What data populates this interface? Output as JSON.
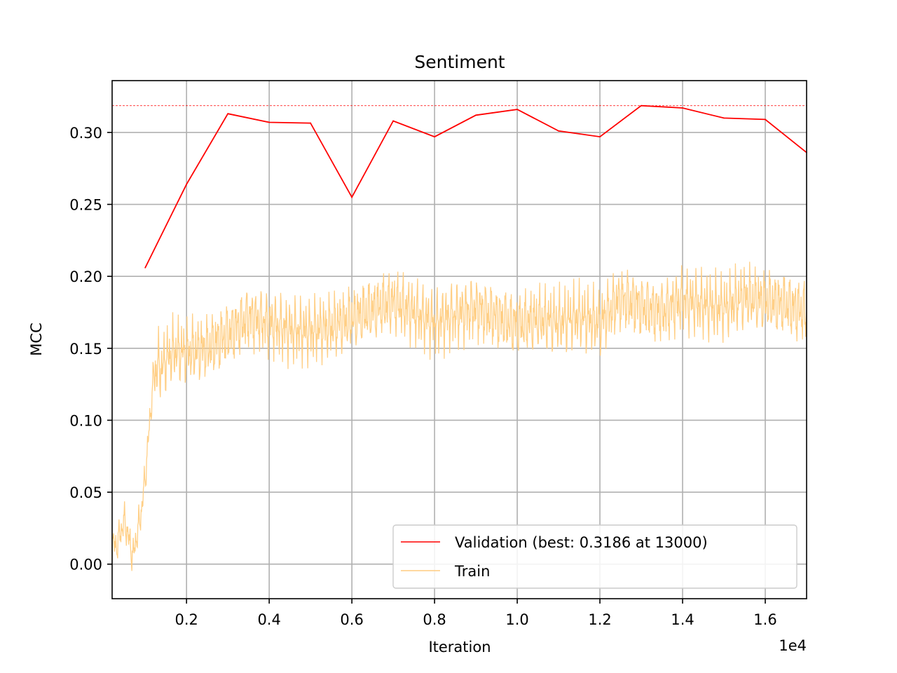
{
  "chart_data": {
    "type": "line",
    "title": "Sentiment",
    "xlabel": "Iteration",
    "ylabel": "MCC",
    "x_offset_text": "1e4",
    "xlim": [
      0.02,
      1.7
    ],
    "ylim": [
      -0.024,
      0.336
    ],
    "xticks": [
      0.2,
      0.4,
      0.6,
      0.8,
      1.0,
      1.2,
      1.4,
      1.6
    ],
    "xtick_labels": [
      "0.2",
      "0.4",
      "0.6",
      "0.8",
      "1.0",
      "1.2",
      "1.4",
      "1.6"
    ],
    "yticks": [
      0.0,
      0.05,
      0.1,
      0.15,
      0.2,
      0.25,
      0.3
    ],
    "ytick_labels": [
      "0.00",
      "0.05",
      "0.10",
      "0.15",
      "0.20",
      "0.25",
      "0.30"
    ],
    "grid": true,
    "legend_position": "lower-right",
    "best_line": {
      "y": 0.3186,
      "color": "#ff0000",
      "style": "dashed"
    },
    "series": [
      {
        "name": "Validation (best: 0.3186 at 13000)",
        "color": "#ff0000",
        "x": [
          0.1,
          0.2,
          0.3,
          0.4,
          0.5,
          0.6,
          0.7,
          0.8,
          0.9,
          1.0,
          1.1,
          1.2,
          1.3,
          1.4,
          1.5,
          1.6,
          1.7
        ],
        "y": [
          0.206,
          0.264,
          0.313,
          0.307,
          0.3065,
          0.255,
          0.308,
          0.297,
          0.312,
          0.316,
          0.301,
          0.297,
          0.3186,
          0.317,
          0.31,
          0.309,
          0.286
        ]
      },
      {
        "name": "Train",
        "color": "#ffcc80",
        "x": [
          0.02,
          0.03,
          0.04,
          0.05,
          0.06,
          0.07,
          0.08,
          0.09,
          0.1,
          0.11,
          0.12,
          0.13,
          0.14,
          0.15,
          0.17,
          0.2,
          0.25,
          0.3,
          0.35,
          0.4,
          0.45,
          0.5,
          0.55,
          0.6,
          0.65,
          0.7,
          0.75,
          0.8,
          0.85,
          0.9,
          0.95,
          1.0,
          1.05,
          1.1,
          1.15,
          1.2,
          1.25,
          1.3,
          1.35,
          1.4,
          1.45,
          1.5,
          1.55,
          1.6,
          1.65,
          1.7
        ],
        "y": [
          0.015,
          0.012,
          0.022,
          0.03,
          0.018,
          0.005,
          0.02,
          0.035,
          0.06,
          0.095,
          0.13,
          0.138,
          0.135,
          0.142,
          0.148,
          0.147,
          0.15,
          0.16,
          0.172,
          0.168,
          0.163,
          0.162,
          0.165,
          0.17,
          0.176,
          0.182,
          0.175,
          0.168,
          0.174,
          0.178,
          0.172,
          0.166,
          0.17,
          0.168,
          0.172,
          0.168,
          0.185,
          0.18,
          0.176,
          0.184,
          0.18,
          0.178,
          0.185,
          0.182,
          0.18,
          0.175
        ]
      }
    ]
  }
}
